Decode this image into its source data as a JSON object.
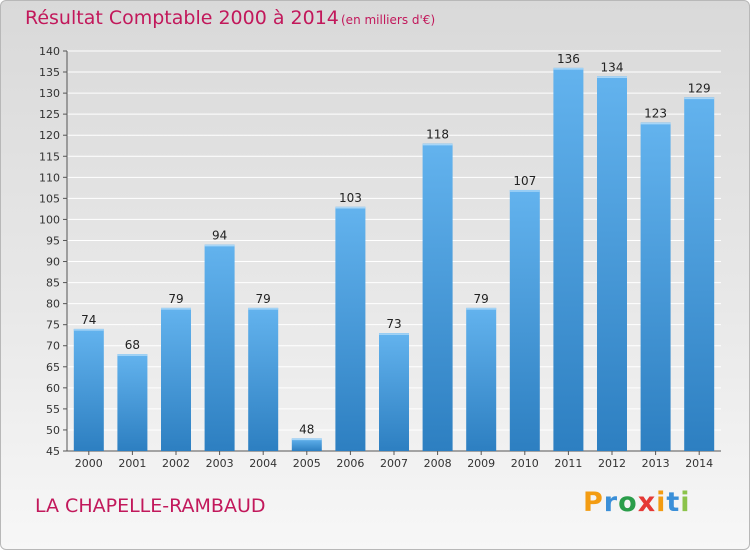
{
  "header": {
    "title": "Résultat Comptable 2000 à 2014",
    "subtitle": "(en milliers d'€)"
  },
  "footer": {
    "commune": "LA CHAPELLE-RAMBAUD",
    "logo_text": "Proxiti",
    "logo_colors": [
      "#f39c12",
      "#3a8fd8",
      "#2a9d4a",
      "#e53935",
      "#f39c12",
      "#3a8fd8",
      "#8bc34a"
    ]
  },
  "colors": {
    "title": "#c2185b",
    "bar_light": "#63b3ee",
    "bar_dark": "#2d7fc1",
    "grid": "#ffffff"
  },
  "chart_data": {
    "type": "bar",
    "title": "Résultat Comptable 2000 à 2014",
    "subtitle": "(en milliers d'€)",
    "xlabel": "",
    "ylabel": "",
    "categories": [
      "2000",
      "2001",
      "2002",
      "2003",
      "2004",
      "2005",
      "2006",
      "2007",
      "2008",
      "2009",
      "2010",
      "2011",
      "2012",
      "2013",
      "2014"
    ],
    "values": [
      74,
      68,
      79,
      94,
      79,
      48,
      103,
      73,
      118,
      79,
      107,
      136,
      134,
      123,
      129
    ],
    "ylim": [
      45,
      140
    ],
    "yticks": [
      45,
      50,
      55,
      60,
      65,
      70,
      75,
      80,
      85,
      90,
      95,
      100,
      105,
      110,
      115,
      120,
      125,
      130,
      135,
      140
    ],
    "grid": true,
    "legend": "none"
  }
}
